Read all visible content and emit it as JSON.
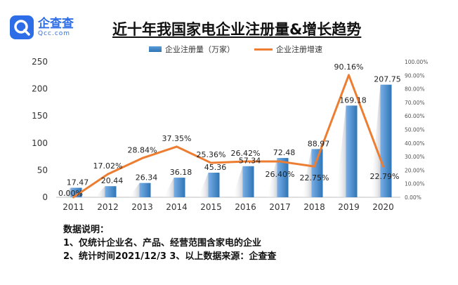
{
  "brand": {
    "name_cn": "企查查",
    "name_en": "Qcc.com"
  },
  "colors": {
    "bar": "#4f8fd6",
    "bar_dark": "#2e75b6",
    "line": "#ed7d31",
    "brand": "#2d6ee8"
  },
  "chart_data": {
    "type": "bar",
    "title": "近十年我国家电企业注册量&增长趋势",
    "categories": [
      "2011",
      "2012",
      "2013",
      "2014",
      "2015",
      "2016",
      "2017",
      "2018",
      "2019",
      "2020"
    ],
    "series": [
      {
        "name": "企业注册量（万家）",
        "type": "bar",
        "axis": "left",
        "values": [
          17.47,
          20.44,
          26.34,
          36.18,
          45.36,
          57.34,
          72.48,
          88.97,
          169.18,
          207.75
        ],
        "labels": [
          "17.47",
          "20.44",
          "26.34",
          "36.18",
          "45.36",
          "57.34",
          "72.48",
          "88.97",
          "169.18",
          "207.75"
        ]
      },
      {
        "name": "企业注册增速",
        "type": "line",
        "axis": "right",
        "values": [
          0.0,
          17.02,
          28.84,
          37.35,
          25.36,
          26.42,
          26.4,
          22.75,
          90.16,
          22.79
        ],
        "labels": [
          "0.00%",
          "17.02%",
          "28.84%",
          "37.35%",
          "25.36%",
          "26.42%",
          "26.40%",
          "22.75%",
          "90.16%",
          "22.79%"
        ]
      }
    ],
    "ylim": [
      0,
      250
    ],
    "y_ticks": [
      0,
      50,
      100,
      150,
      200,
      250
    ],
    "y2lim": [
      0,
      100
    ],
    "y2_ticks": [
      0,
      10,
      20,
      30,
      40,
      50,
      60,
      70,
      80,
      90,
      100
    ],
    "y2_tick_labels": [
      "0.00%",
      "10.00%",
      "20.00%",
      "30.00%",
      "40.00%",
      "50.00%",
      "60.00%",
      "70.00%",
      "80.00%",
      "90.00%",
      "100.00%"
    ],
    "legend": "top-center",
    "grid": false
  },
  "notes": {
    "heading": "数据说明：",
    "line1": "1、仅统计企业名、产品、经营范围含家电的企业",
    "line2": "2、统计时间2021/12/3    3、以上数据来源：企查查"
  }
}
